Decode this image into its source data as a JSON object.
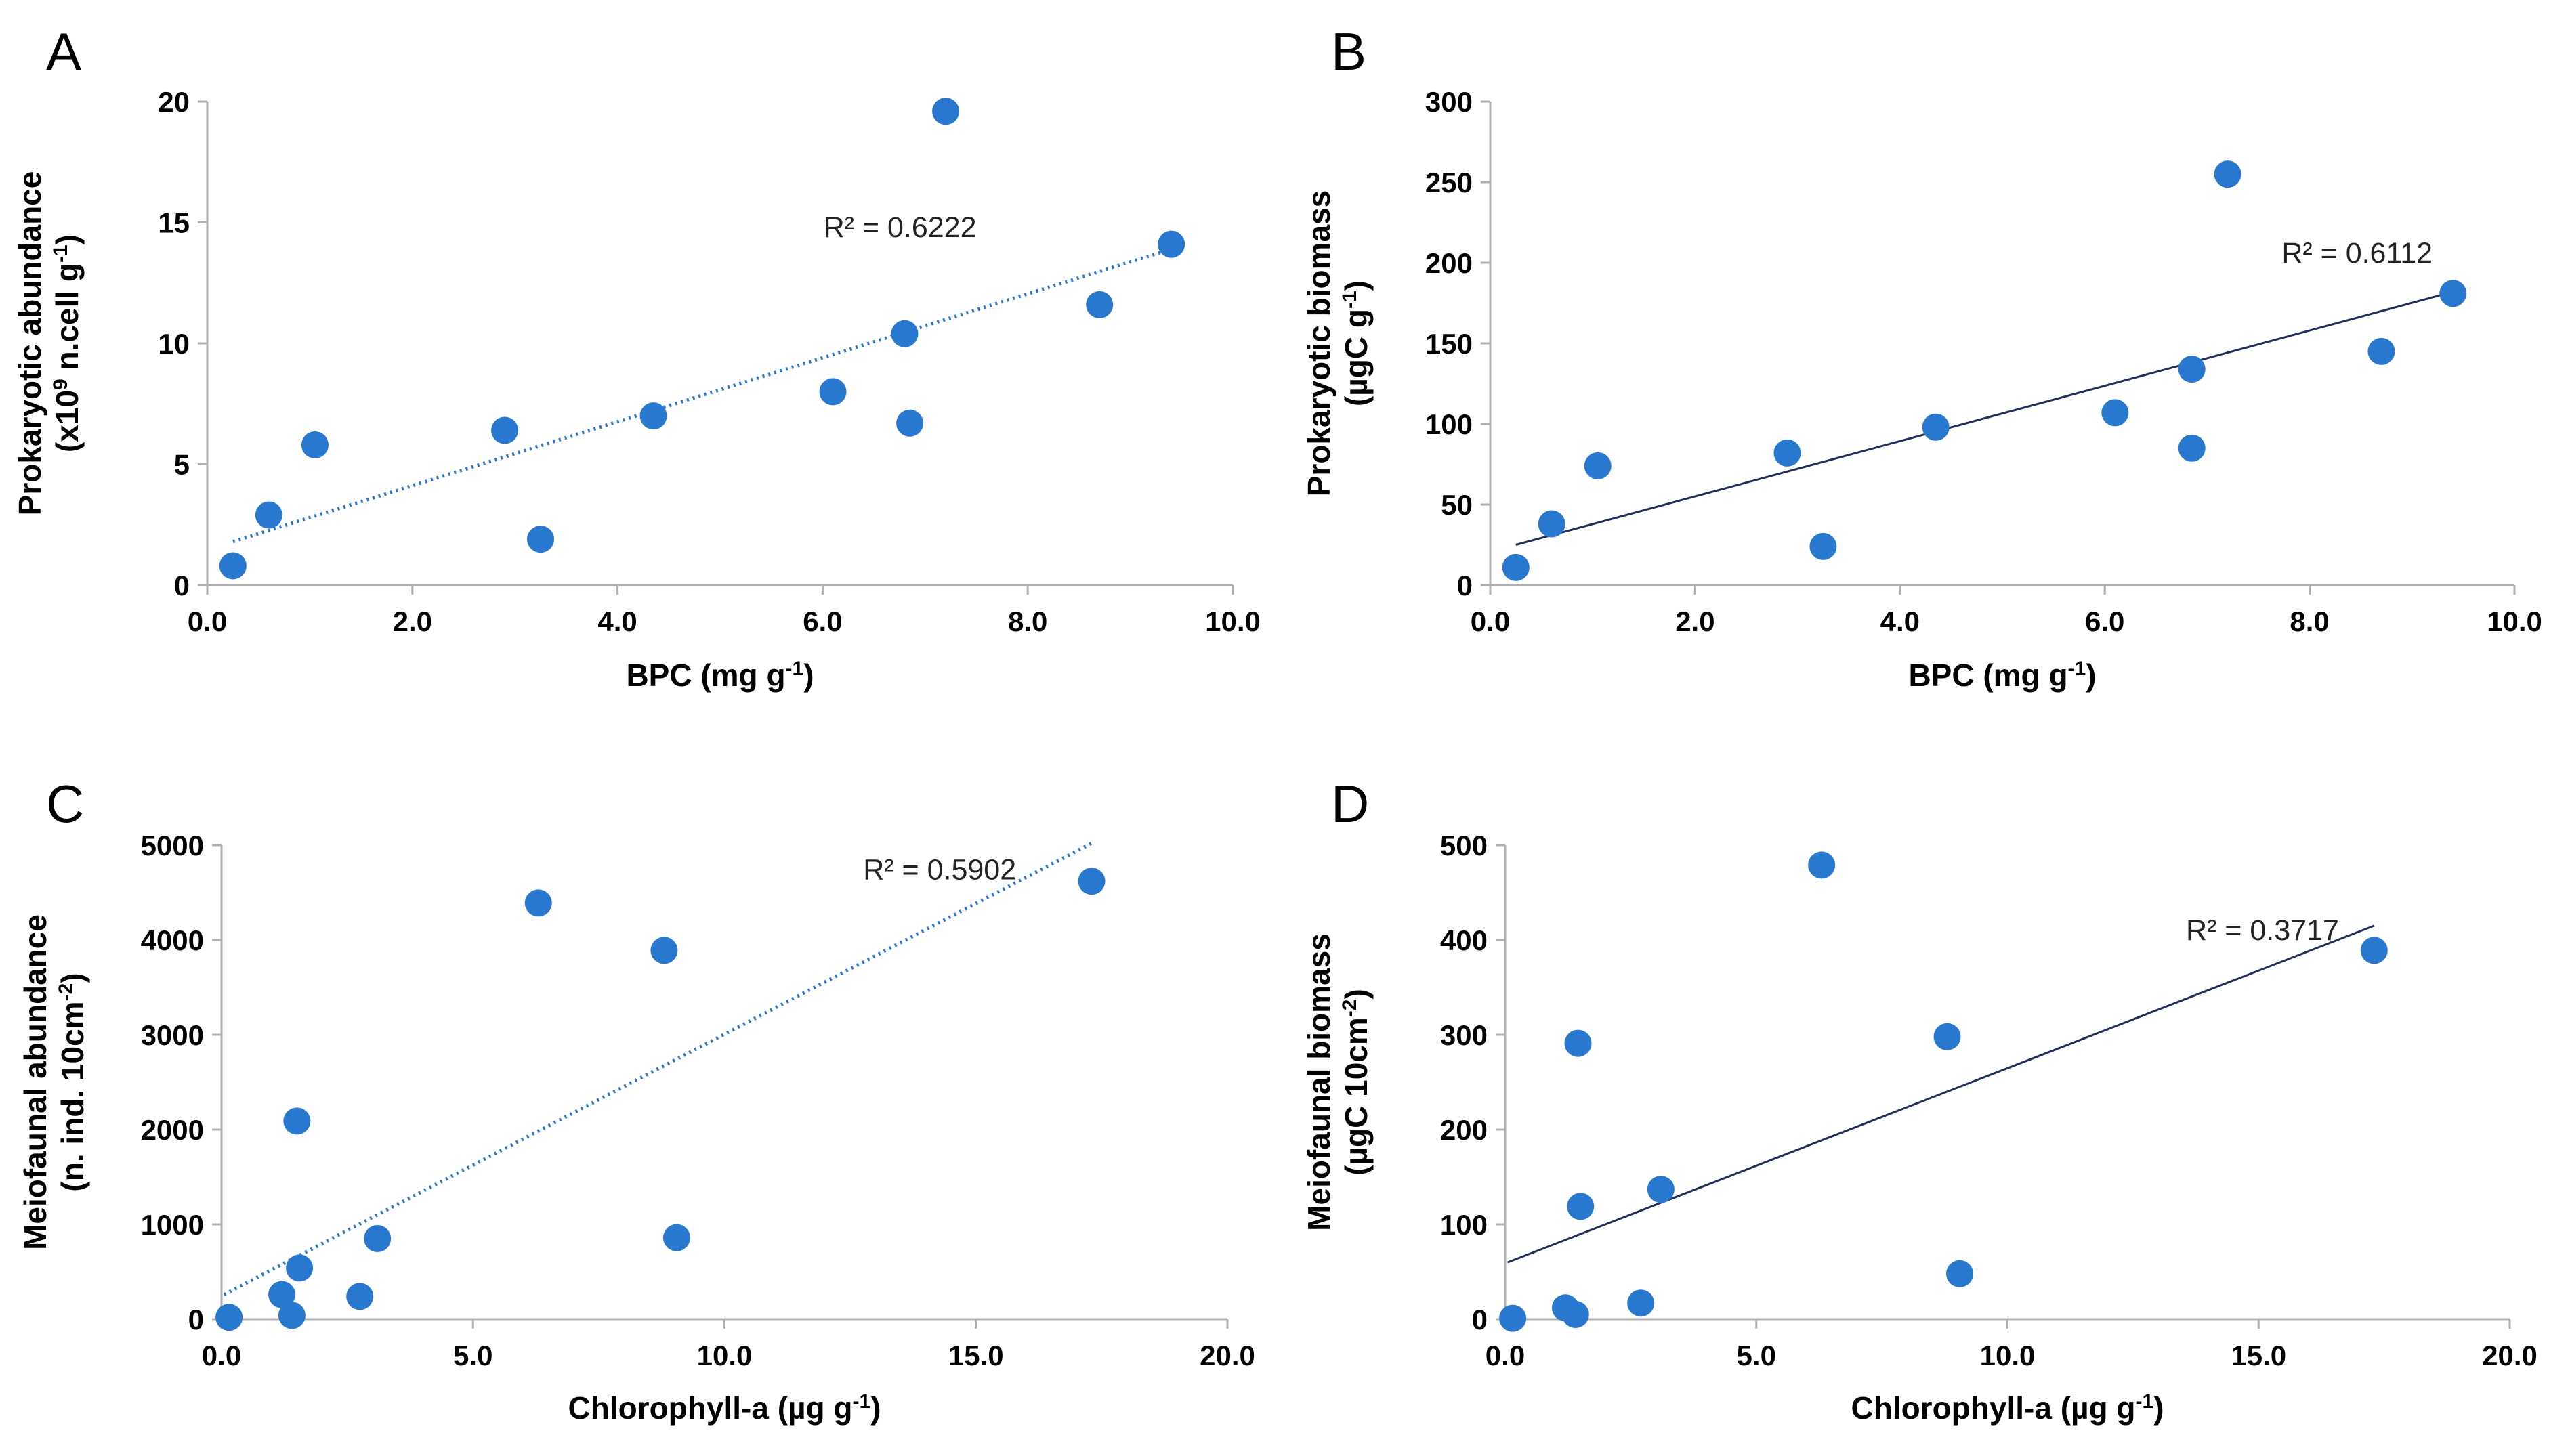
{
  "chart_data": [
    {
      "id": "A",
      "type": "scatter",
      "panel_label": "A",
      "xlabel": "BPC (mg g-1)",
      "xlabel_parts": [
        "BPC (mg g",
        "-1",
        ")"
      ],
      "ylabel": "Prokaryotic abundance (x10^9 n.cell g-1)",
      "ylabel_line1": "Prokaryotic abundance",
      "ylabel_line2_parts": [
        "(x10",
        "9",
        " n.cell g",
        "-1",
        ")"
      ],
      "xlim": [
        0,
        10
      ],
      "ylim": [
        0,
        20
      ],
      "x_ticks": [
        0,
        2,
        4,
        6,
        8,
        10
      ],
      "x_tick_labels": [
        "0.0",
        "2.0",
        "4.0",
        "6.0",
        "8.0",
        "10.0"
      ],
      "y_ticks": [
        0,
        5,
        10,
        15,
        20
      ],
      "y_tick_labels": [
        "0",
        "5",
        "10",
        "15",
        "20"
      ],
      "points": [
        {
          "x": 0.25,
          "y": 0.8
        },
        {
          "x": 0.6,
          "y": 2.9
        },
        {
          "x": 1.05,
          "y": 5.8
        },
        {
          "x": 2.9,
          "y": 6.4
        },
        {
          "x": 3.25,
          "y": 1.9
        },
        {
          "x": 4.35,
          "y": 7.0
        },
        {
          "x": 6.1,
          "y": 8.0
        },
        {
          "x": 6.8,
          "y": 10.4
        },
        {
          "x": 6.85,
          "y": 6.7
        },
        {
          "x": 7.2,
          "y": 19.6
        },
        {
          "x": 8.7,
          "y": 11.6
        },
        {
          "x": 9.4,
          "y": 14.1
        }
      ],
      "trendline": {
        "x": [
          0.25,
          9.4
        ],
        "y": [
          1.8,
          13.9
        ],
        "style": "dotted",
        "color": "#2878d0"
      },
      "r2_label": "R² = 0.6222",
      "r2_anchor": {
        "x": 7.5,
        "y": 14.4
      }
    },
    {
      "id": "B",
      "type": "scatter",
      "panel_label": "B",
      "xlabel": "BPC (mg g-1)",
      "xlabel_parts": [
        "BPC (mg g",
        "-1",
        ")"
      ],
      "ylabel": "Prokaryotic biomass (µgC g-1)",
      "ylabel_line1": "Prokaryotic biomass",
      "ylabel_line2_parts": [
        "(µgC g",
        "-1",
        ")"
      ],
      "xlim": [
        0,
        10
      ],
      "ylim": [
        0,
        300
      ],
      "x_ticks": [
        0,
        2,
        4,
        6,
        8,
        10
      ],
      "x_tick_labels": [
        "0.0",
        "2.0",
        "4.0",
        "6.0",
        "8.0",
        "10.0"
      ],
      "y_ticks": [
        0,
        50,
        100,
        150,
        200,
        250,
        300
      ],
      "y_tick_labels": [
        "0",
        "50",
        "100",
        "150",
        "200",
        "250",
        "300"
      ],
      "points": [
        {
          "x": 0.25,
          "y": 11
        },
        {
          "x": 0.6,
          "y": 38
        },
        {
          "x": 1.05,
          "y": 74
        },
        {
          "x": 2.9,
          "y": 82
        },
        {
          "x": 3.25,
          "y": 24
        },
        {
          "x": 4.35,
          "y": 98
        },
        {
          "x": 6.1,
          "y": 107
        },
        {
          "x": 6.85,
          "y": 134
        },
        {
          "x": 6.85,
          "y": 85
        },
        {
          "x": 7.2,
          "y": 255
        },
        {
          "x": 8.7,
          "y": 145
        },
        {
          "x": 9.4,
          "y": 181
        }
      ],
      "trendline": {
        "x": [
          0.25,
          9.4
        ],
        "y": [
          25,
          182
        ],
        "style": "solid",
        "color": "#1f2f5a"
      },
      "r2_label": "R² = 0.6112",
      "r2_anchor": {
        "x": 9.2,
        "y": 200
      }
    },
    {
      "id": "C",
      "type": "scatter",
      "panel_label": "C",
      "xlabel": "Chlorophyll-a (µg g-1)",
      "xlabel_parts": [
        "Chlorophyll-a (µg g",
        "-1",
        ")"
      ],
      "ylabel": "Meiofaunal abundance (n. ind. 10cm-2)",
      "ylabel_line1": "Meiofaunal abundance",
      "ylabel_line2_parts": [
        "(n. ind. 10cm",
        "-2",
        ")"
      ],
      "xlim": [
        0,
        20
      ],
      "ylim": [
        0,
        5000
      ],
      "x_ticks": [
        0,
        5,
        10,
        15,
        20
      ],
      "x_tick_labels": [
        "0.0",
        "5.0",
        "10.0",
        "15.0",
        "20.0"
      ],
      "y_ticks": [
        0,
        1000,
        2000,
        3000,
        4000,
        5000
      ],
      "y_tick_labels": [
        "0",
        "1000",
        "2000",
        "3000",
        "4000",
        "5000"
      ],
      "points": [
        {
          "x": 0.15,
          "y": 20
        },
        {
          "x": 1.2,
          "y": 260
        },
        {
          "x": 1.4,
          "y": 40
        },
        {
          "x": 1.5,
          "y": 2090
        },
        {
          "x": 1.55,
          "y": 540
        },
        {
          "x": 2.75,
          "y": 240
        },
        {
          "x": 3.1,
          "y": 850
        },
        {
          "x": 6.3,
          "y": 4390
        },
        {
          "x": 8.8,
          "y": 3890
        },
        {
          "x": 9.05,
          "y": 860
        },
        {
          "x": 17.3,
          "y": 4620
        }
      ],
      "trendline": {
        "x": [
          0.05,
          17.3
        ],
        "y": [
          260,
          5020
        ],
        "style": "dotted",
        "color": "#2878d0"
      },
      "r2_label": "R² = 0.5902",
      "r2_anchor": {
        "x": 15.8,
        "y": 4640
      }
    },
    {
      "id": "D",
      "type": "scatter",
      "panel_label": "D",
      "xlabel": "Chlorophyll-a (µg g-1)",
      "xlabel_parts": [
        "Chlorophyll-a (µg g",
        "-1",
        ")"
      ],
      "ylabel": "Meiofaunal biomass (µgC 10cm-2)",
      "ylabel_line1": "Meiofaunal biomass",
      "ylabel_line2_parts": [
        "(µgC 10cm",
        "-2",
        ")"
      ],
      "xlim": [
        0,
        20
      ],
      "ylim": [
        0,
        500
      ],
      "x_ticks": [
        0,
        5,
        10,
        15,
        20
      ],
      "x_tick_labels": [
        "0.0",
        "5.0",
        "10.0",
        "15.0",
        "20.0"
      ],
      "y_ticks": [
        0,
        100,
        200,
        300,
        400,
        500
      ],
      "y_tick_labels": [
        "0",
        "100",
        "200",
        "300",
        "400",
        "500"
      ],
      "points": [
        {
          "x": 0.15,
          "y": 1
        },
        {
          "x": 1.2,
          "y": 12
        },
        {
          "x": 1.4,
          "y": 5
        },
        {
          "x": 1.45,
          "y": 291
        },
        {
          "x": 1.5,
          "y": 119
        },
        {
          "x": 2.7,
          "y": 17
        },
        {
          "x": 3.1,
          "y": 137
        },
        {
          "x": 6.3,
          "y": 479
        },
        {
          "x": 8.8,
          "y": 298
        },
        {
          "x": 9.05,
          "y": 48
        },
        {
          "x": 17.3,
          "y": 389
        }
      ],
      "trendline": {
        "x": [
          0.05,
          17.3
        ],
        "y": [
          60,
          415
        ],
        "style": "solid",
        "color": "#1f2f5a"
      },
      "r2_label": "R² = 0.3717",
      "r2_anchor": {
        "x": 16.6,
        "y": 400
      }
    }
  ]
}
